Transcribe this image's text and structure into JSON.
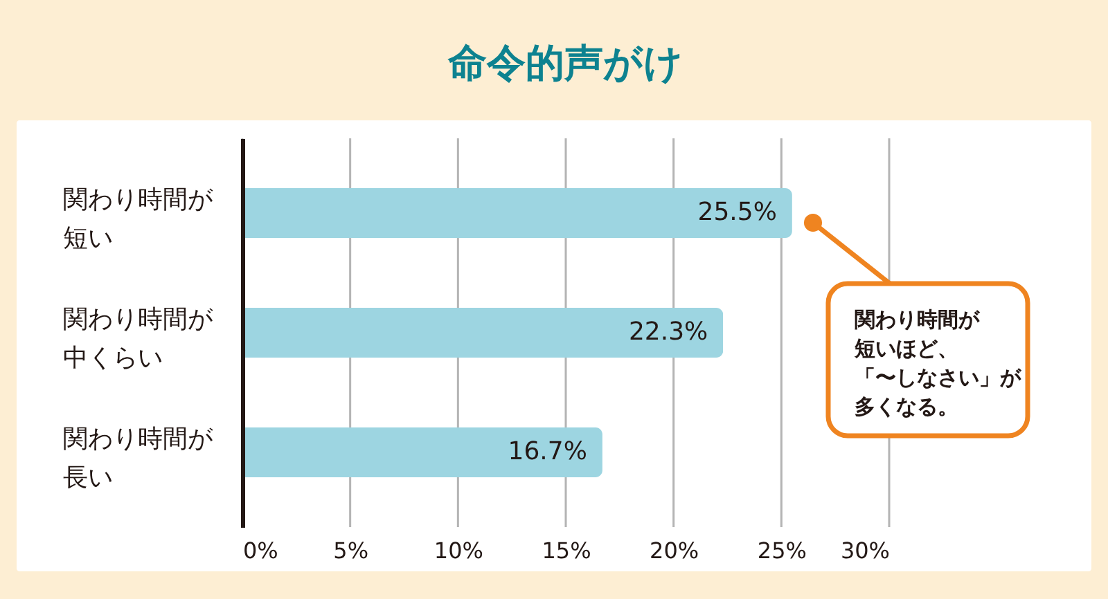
{
  "chart_data": {
    "type": "bar",
    "orientation": "horizontal",
    "title": "命令的声がけ",
    "categories": [
      "関わり時間が短い",
      "関わり時間が中くらい",
      "関わり時間が長い"
    ],
    "values": [
      25.5,
      22.3,
      16.7
    ],
    "color": "#9dd5e1",
    "value_labels": [
      "25.5%",
      "22.3%",
      "16.7%"
    ],
    "xlim": [
      0,
      30
    ],
    "xticks": [
      {
        "value": 0,
        "label": "0%"
      },
      {
        "value": 5,
        "label": "5%"
      },
      {
        "value": 10,
        "label": "10%"
      },
      {
        "value": 15,
        "label": "15%"
      },
      {
        "value": 20,
        "label": "20%"
      },
      {
        "value": 25,
        "label": "25%"
      },
      {
        "value": 30,
        "label": "30%"
      }
    ],
    "grid": "x",
    "annotations": [
      "関わり時間が短いほど、「〜しなさい」が多くなる。"
    ]
  }
}
